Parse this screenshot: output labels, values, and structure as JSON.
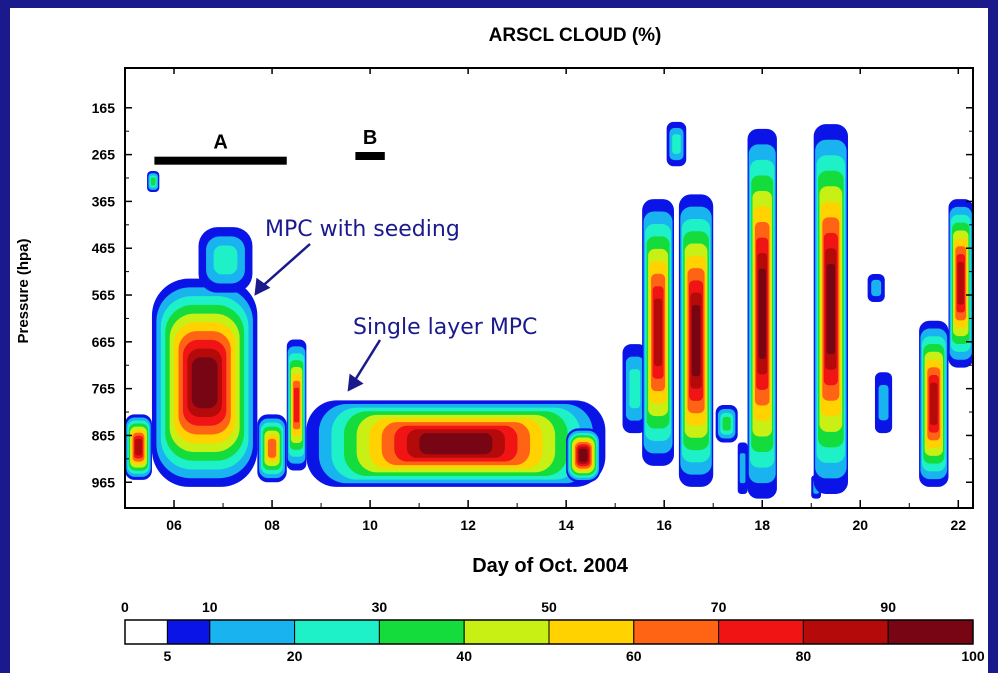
{
  "chart_data": {
    "type": "heatmap",
    "title": "ARSCL CLOUD (%)",
    "xlabel": "Day of Oct. 2004",
    "ylabel": "Pressure (hpa)",
    "x_ticks": [
      "06",
      "08",
      "10",
      "12",
      "14",
      "16",
      "18",
      "20",
      "22"
    ],
    "x_tick_values": [
      6,
      8,
      10,
      12,
      14,
      16,
      18,
      20,
      22
    ],
    "xlim": [
      5.0,
      22.3
    ],
    "y_ticks": [
      "165",
      "265",
      "365",
      "465",
      "565",
      "665",
      "765",
      "865",
      "965"
    ],
    "y_tick_values": [
      165,
      265,
      365,
      465,
      565,
      665,
      765,
      865,
      965
    ],
    "ylim": [
      80,
      1020
    ],
    "colorbar": {
      "top_labels": [
        "0",
        "10",
        "30",
        "50",
        "70",
        "90"
      ],
      "top_values": [
        0,
        10,
        30,
        50,
        70,
        90
      ],
      "bottom_labels": [
        "5",
        "20",
        "40",
        "60",
        "80",
        "100"
      ],
      "bottom_values": [
        5,
        20,
        40,
        60,
        80,
        100
      ],
      "bins": [
        {
          "from": 0,
          "to": 5,
          "color": "#ffffff"
        },
        {
          "from": 5,
          "to": 10,
          "color": "#0a14e6"
        },
        {
          "from": 10,
          "to": 20,
          "color": "#19b4f0"
        },
        {
          "from": 20,
          "to": 30,
          "color": "#1ef0c8"
        },
        {
          "from": 30,
          "to": 40,
          "color": "#14dc3c"
        },
        {
          "from": 40,
          "to": 50,
          "color": "#c8f014"
        },
        {
          "from": 50,
          "to": 60,
          "color": "#ffd200"
        },
        {
          "from": 60,
          "to": 70,
          "color": "#ff6414"
        },
        {
          "from": 70,
          "to": 80,
          "color": "#f01414"
        },
        {
          "from": 80,
          "to": 90,
          "color": "#b40a0a"
        },
        {
          "from": 90,
          "to": 100,
          "color": "#780514"
        }
      ]
    },
    "periods": [
      {
        "label": "A",
        "x_start": 5.6,
        "x_end": 8.3,
        "pressure": 278
      },
      {
        "label": "B",
        "x_start": 9.7,
        "x_end": 10.3,
        "pressure": 268
      }
    ],
    "annotations": [
      {
        "text": "MPC with seeding",
        "x": 7.6,
        "pressure": 575
      },
      {
        "text": "Single layer MPC",
        "x": 9.5,
        "pressure": 780
      }
    ],
    "cloud_features": [
      {
        "x": [
          5.0,
          5.55
        ],
        "top": 820,
        "bottom": 960,
        "core": 90
      },
      {
        "x": [
          5.45,
          5.7
        ],
        "top": 300,
        "bottom": 345,
        "core": 35
      },
      {
        "x": [
          5.55,
          7.7
        ],
        "top": 530,
        "bottom": 975,
        "core": 95
      },
      {
        "x": [
          6.5,
          7.6
        ],
        "top": 420,
        "bottom": 560,
        "core": 30
      },
      {
        "x": [
          7.7,
          8.3
        ],
        "top": 820,
        "bottom": 965,
        "core": 65
      },
      {
        "x": [
          8.3,
          8.7
        ],
        "top": 660,
        "bottom": 940,
        "core": 75
      },
      {
        "x": [
          8.7,
          14.8
        ],
        "top": 790,
        "bottom": 975,
        "core": 92
      },
      {
        "x": [
          14.0,
          14.7
        ],
        "top": 850,
        "bottom": 965,
        "core": 95
      },
      {
        "x": [
          15.15,
          15.65
        ],
        "top": 670,
        "bottom": 860,
        "core": 25
      },
      {
        "x": [
          15.55,
          16.2
        ],
        "top": 360,
        "bottom": 930,
        "core": 90
      },
      {
        "x": [
          16.05,
          16.45
        ],
        "top": 195,
        "bottom": 290,
        "core": 30
      },
      {
        "x": [
          16.3,
          17.0
        ],
        "top": 350,
        "bottom": 975,
        "core": 95
      },
      {
        "x": [
          17.05,
          17.5
        ],
        "top": 800,
        "bottom": 880,
        "core": 35
      },
      {
        "x": [
          17.5,
          17.7
        ],
        "top": 880,
        "bottom": 990,
        "core": 15
      },
      {
        "x": [
          17.7,
          18.3
        ],
        "top": 210,
        "bottom": 1000,
        "core": 95
      },
      {
        "x": [
          19.0,
          19.2
        ],
        "top": 950,
        "bottom": 1000,
        "core": 15
      },
      {
        "x": [
          19.05,
          19.75
        ],
        "top": 200,
        "bottom": 990,
        "core": 95
      },
      {
        "x": [
          20.15,
          20.5
        ],
        "top": 520,
        "bottom": 580,
        "core": 15
      },
      {
        "x": [
          20.3,
          20.65
        ],
        "top": 730,
        "bottom": 860,
        "core": 15
      },
      {
        "x": [
          21.2,
          21.8
        ],
        "top": 620,
        "bottom": 975,
        "core": 90
      },
      {
        "x": [
          21.8,
          22.3
        ],
        "top": 360,
        "bottom": 720,
        "core": 85
      }
    ]
  }
}
